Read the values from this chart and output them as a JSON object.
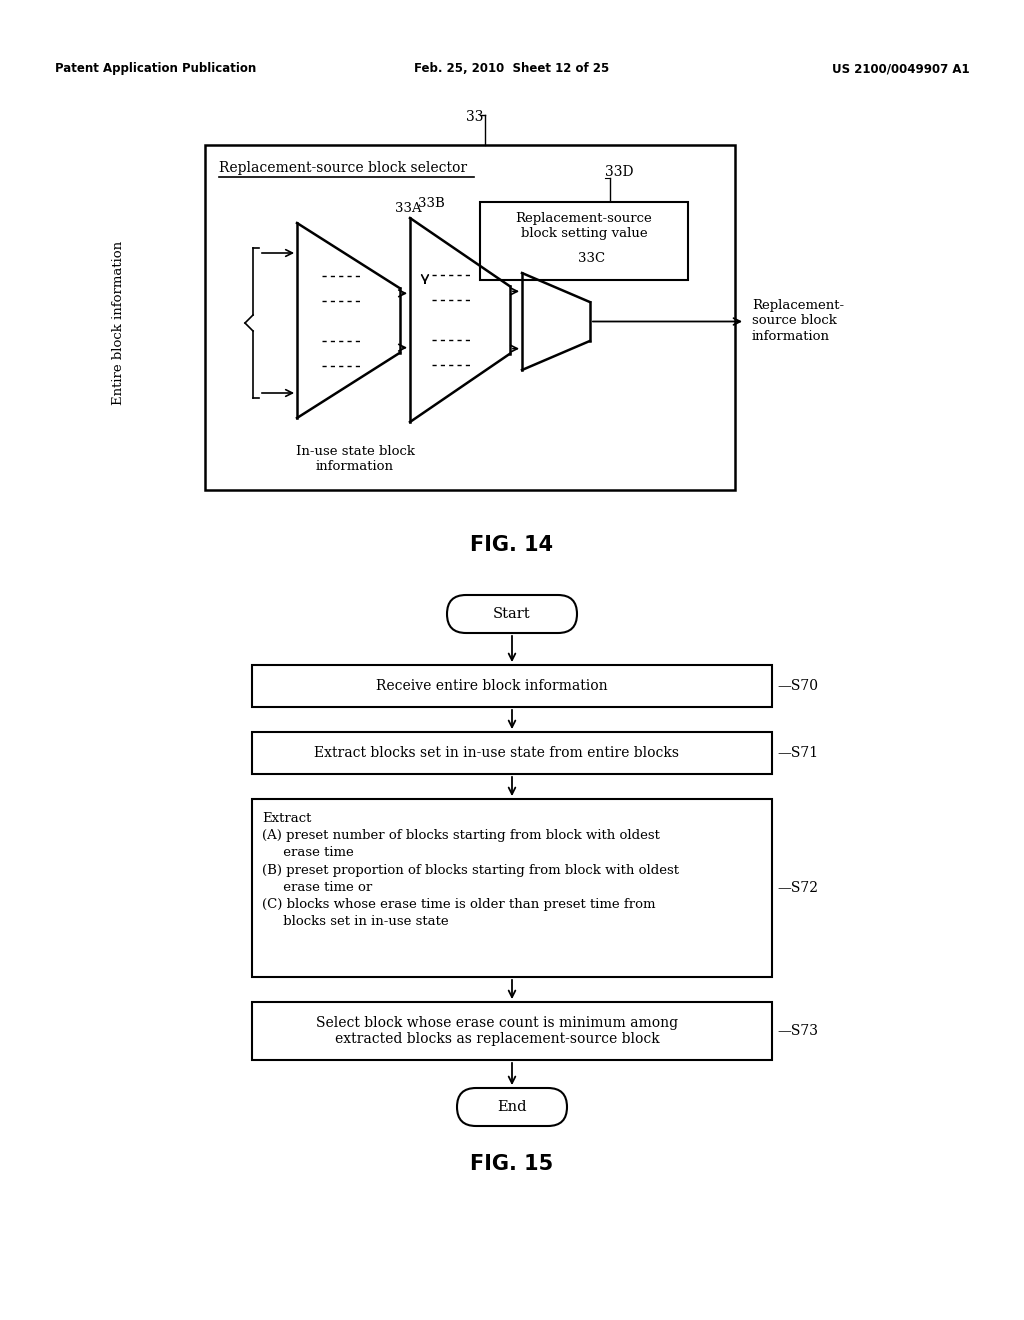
{
  "bg_color": "#ffffff",
  "header_left": "Patent Application Publication",
  "header_center": "Feb. 25, 2010  Sheet 12 of 25",
  "header_right": "US 2100/0049907 A1",
  "fig14_label": "FIG. 14",
  "fig15_label": "FIG. 15",
  "fig14": {
    "outer_label": "Replacement-source block selector",
    "ref_33": "33",
    "ref_33D": "33D",
    "ref_33A": "33A",
    "ref_33B": "33B",
    "ref_33C": "33C",
    "inner_box_label": "Replacement-source\nblock setting value",
    "left_label": "Entire block information",
    "bottom_label": "In-use state block\ninformation",
    "right_label": "Replacement-\nsource block\ninformation"
  },
  "fig15": {
    "start_label": "Start",
    "end_label": "End",
    "box0_label": "Receive entire block information",
    "box0_ref": "S70",
    "box1_label": "Extract blocks set in in-use state from entire blocks",
    "box1_ref": "S71",
    "box2_ref": "S72",
    "box3_label": "Select block whose erase count is minimum among\nextracted blocks as replacement-source block",
    "box3_ref": "S73"
  }
}
